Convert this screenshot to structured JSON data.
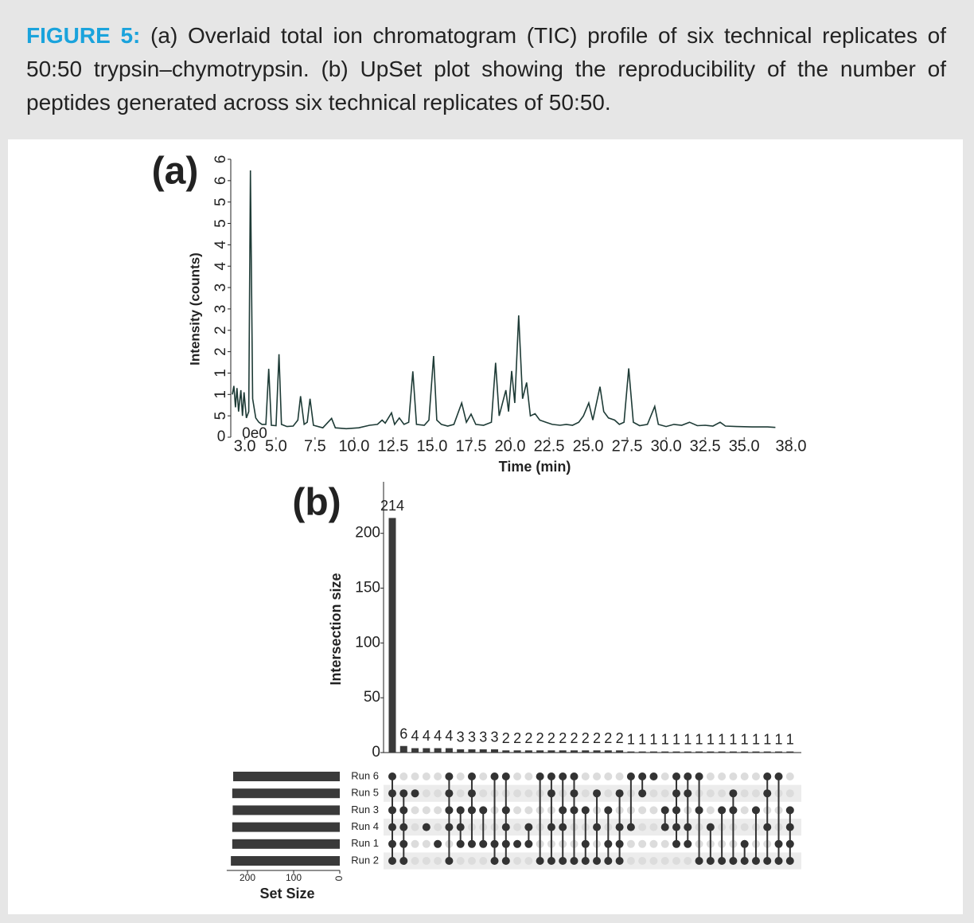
{
  "caption": {
    "label": "FIGURE 5:",
    "text": "(a) Overlaid total ion chromatogram (TIC) profile of six technical replicates of 50:50 trypsin–chymotrypsin. (b) UpSet plot showing the reproducibility of the number of peptides generated across six technical replicates of 50:50."
  },
  "chart_data": [
    {
      "type": "line",
      "title": "(a)",
      "xlabel": "Time (min)",
      "ylabel": "Intensity (counts)",
      "offset_text": "0e0",
      "color": "#1e3b36",
      "x": [
        2.2,
        2.3,
        2.4,
        2.5,
        2.6,
        2.75,
        2.85,
        2.95,
        3.1,
        3.25,
        3.36,
        3.5,
        3.7,
        3.9,
        4.1,
        4.35,
        4.53,
        4.7,
        5.0,
        5.19,
        5.35,
        5.7,
        6.1,
        6.4,
        6.57,
        6.8,
        7.0,
        7.18,
        7.4,
        8.0,
        8.56,
        8.8,
        9.5,
        10.3,
        11.0,
        11.5,
        11.8,
        12.0,
        12.4,
        12.6,
        12.9,
        13.2,
        13.5,
        13.77,
        14.0,
        14.5,
        14.8,
        15.1,
        15.3,
        15.6,
        16.0,
        16.4,
        16.9,
        17.2,
        17.5,
        17.8,
        18.3,
        18.8,
        19.07,
        19.3,
        19.73,
        19.9,
        20.1,
        20.3,
        20.55,
        20.8,
        21.06,
        21.3,
        21.6,
        21.9,
        22.3,
        22.7,
        23.2,
        23.6,
        24.0,
        24.4,
        24.7,
        25.04,
        25.3,
        25.76,
        26.0,
        26.3,
        26.7,
        27.0,
        27.3,
        27.6,
        27.9,
        28.3,
        28.8,
        29.27,
        29.5,
        30.0,
        30.5,
        31.0,
        31.5,
        32.0,
        32.5,
        33.0,
        33.46,
        33.8,
        34.5,
        35.5,
        36.5,
        37.0
      ],
      "values": [
        1.0,
        1.2,
        0.7,
        1.15,
        0.6,
        1.1,
        0.5,
        1.05,
        0.45,
        0.6,
        6.24,
        0.9,
        0.45,
        0.35,
        0.3,
        0.3,
        1.6,
        0.28,
        0.27,
        1.94,
        0.3,
        0.25,
        0.26,
        0.4,
        0.96,
        0.3,
        0.35,
        0.9,
        0.28,
        0.22,
        0.44,
        0.22,
        0.2,
        0.22,
        0.28,
        0.3,
        0.4,
        0.33,
        0.57,
        0.3,
        0.45,
        0.3,
        0.35,
        1.54,
        0.3,
        0.28,
        0.4,
        1.9,
        0.4,
        0.3,
        0.26,
        0.3,
        0.8,
        0.35,
        0.54,
        0.3,
        0.28,
        0.35,
        1.74,
        0.5,
        1.1,
        0.6,
        1.55,
        0.8,
        2.85,
        0.9,
        1.28,
        0.5,
        0.55,
        0.4,
        0.35,
        0.3,
        0.28,
        0.3,
        0.28,
        0.35,
        0.5,
        0.8,
        0.4,
        1.18,
        0.6,
        0.45,
        0.4,
        0.3,
        0.35,
        1.61,
        0.35,
        0.27,
        0.3,
        0.72,
        0.3,
        0.25,
        0.3,
        0.28,
        0.35,
        0.27,
        0.28,
        0.26,
        0.35,
        0.26,
        0.25,
        0.24,
        0.24,
        0.23
      ],
      "xlim": [
        2.1,
        38.0
      ],
      "xticks": [
        {
          "value": 3,
          "label": "3.0"
        },
        {
          "value": 5,
          "label": "5.0"
        },
        7.5,
        {
          "value": 10,
          "label": "10.0"
        },
        12.5,
        {
          "value": 15,
          "label": "15.0"
        },
        17.5,
        {
          "value": 20,
          "label": "20.0"
        },
        22.5,
        {
          "value": 25,
          "label": "25.0"
        },
        27.5,
        {
          "value": 30,
          "label": "30.0"
        },
        32.5,
        {
          "value": 35,
          "label": "35.0"
        },
        {
          "value": 38,
          "label": "38.0"
        }
      ],
      "ylim": [
        0,
        6.5
      ],
      "yticks": [
        0,
        {
          "value": 0.5,
          "label": "5"
        },
        {
          "value": 1,
          "label": "1"
        },
        {
          "value": 1.5,
          "label": "1"
        },
        {
          "value": 2,
          "label": "2"
        },
        {
          "value": 2.5,
          "label": "2"
        },
        {
          "value": 3,
          "label": "3"
        },
        {
          "value": 3.5,
          "label": "3"
        },
        {
          "value": 4,
          "label": "4"
        },
        {
          "value": 4.5,
          "label": "4"
        },
        {
          "value": 5,
          "label": "5"
        },
        {
          "value": 5.5,
          "label": "5"
        },
        {
          "value": 6,
          "label": "6"
        },
        {
          "value": 6.5,
          "label": "6"
        }
      ]
    },
    {
      "type": "upset",
      "title": "(b)",
      "ylabel": "Intersection size",
      "set_size_label": "Set Size",
      "color": "#3a3a3a",
      "values": [
        214,
        6,
        4,
        4,
        4,
        4,
        3,
        3,
        3,
        3,
        2,
        2,
        2,
        2,
        2,
        2,
        2,
        2,
        2,
        2,
        2,
        1,
        1,
        1,
        1,
        1,
        1,
        1,
        1,
        1,
        1,
        1,
        1,
        1,
        1,
        1
      ],
      "ylim": [
        0,
        247
      ],
      "yticks": [
        0,
        50,
        100,
        150,
        200
      ],
      "sets": [
        "Run 6",
        "Run 5",
        "Run 3",
        "Run 4",
        "Run 1",
        "Run 2"
      ],
      "set_sizes": [
        231,
        233,
        232,
        233,
        233,
        236
      ],
      "set_size_xlim": [
        0,
        245
      ],
      "set_size_ticks": [
        200,
        100,
        0
      ],
      "intersections": [
        [
          0,
          1,
          2,
          3,
          4,
          5
        ],
        [
          1,
          2,
          3,
          4,
          5
        ],
        [
          1
        ],
        [
          3
        ],
        [
          4
        ],
        [
          0,
          1,
          2,
          3,
          5
        ],
        [
          2,
          3,
          4
        ],
        [
          0,
          1,
          2,
          4
        ],
        [
          2,
          4
        ],
        [
          0,
          4,
          5
        ],
        [
          0,
          2,
          3,
          4,
          5
        ],
        [
          4
        ],
        [
          3,
          4
        ],
        [
          0,
          5
        ],
        [
          0,
          1,
          3,
          5
        ],
        [
          0,
          2,
          3,
          5
        ],
        [
          0,
          1,
          2,
          5
        ],
        [
          2,
          4,
          5
        ],
        [
          1,
          3,
          5
        ],
        [
          2,
          4,
          5
        ],
        [
          1,
          3,
          4,
          5
        ],
        [
          0,
          3
        ],
        [
          0,
          1
        ],
        [
          0
        ],
        [
          2,
          3
        ],
        [
          0,
          1,
          2,
          3,
          4
        ],
        [
          0,
          1,
          3,
          4
        ],
        [
          0,
          2,
          5
        ],
        [
          3,
          5
        ],
        [
          2,
          5
        ],
        [
          1,
          2,
          5
        ],
        [
          4,
          5
        ],
        [
          2,
          5
        ],
        [
          0,
          1,
          3,
          5
        ],
        [
          0,
          4,
          5
        ],
        [
          2,
          3,
          4,
          5
        ]
      ]
    }
  ]
}
